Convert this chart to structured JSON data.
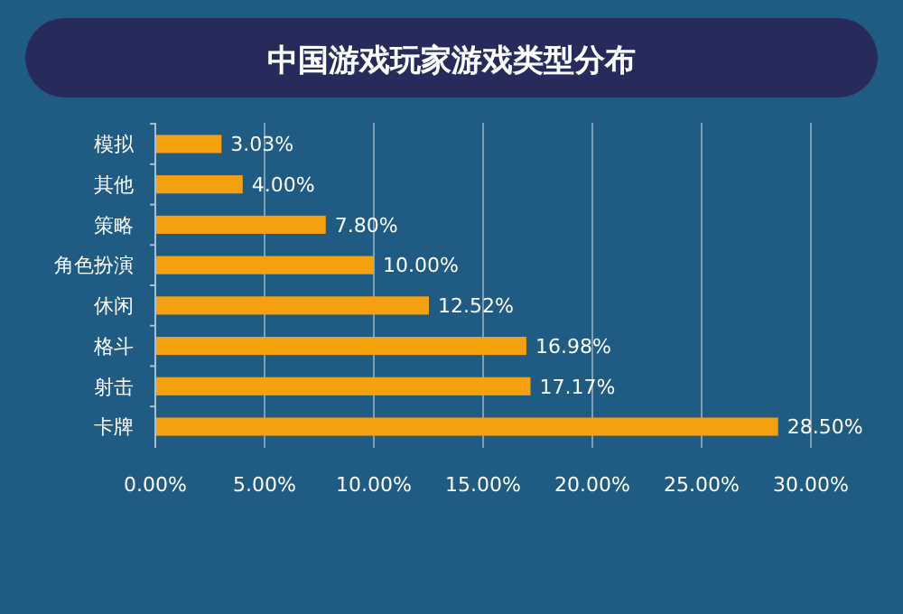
{
  "chart_data": {
    "type": "bar",
    "orientation": "horizontal",
    "title": "中国游戏玩家游戏类型分布",
    "categories": [
      "模拟",
      "其他",
      "策略",
      "角色扮演",
      "休闲",
      "格斗",
      "射击",
      "卡牌"
    ],
    "values": [
      3.03,
      4.0,
      7.8,
      10.0,
      12.52,
      16.98,
      17.17,
      28.5
    ],
    "value_labels": [
      "3.03%",
      "4.00%",
      "7.80%",
      "10.00%",
      "12.52%",
      "16.98%",
      "17.17%",
      "28.50%"
    ],
    "color": "#f5a00f",
    "xlim": [
      0,
      30
    ],
    "xticks": [
      {
        "value": 0,
        "label": "0.00%"
      },
      {
        "value": 5,
        "label": "5.00%"
      },
      {
        "value": 10,
        "label": "10.00%"
      },
      {
        "value": 15,
        "label": "15.00%"
      },
      {
        "value": 20,
        "label": "20.00%"
      },
      {
        "value": 25,
        "label": "25.00%"
      },
      {
        "value": 30,
        "label": "30.00%"
      }
    ],
    "grid": "x"
  }
}
